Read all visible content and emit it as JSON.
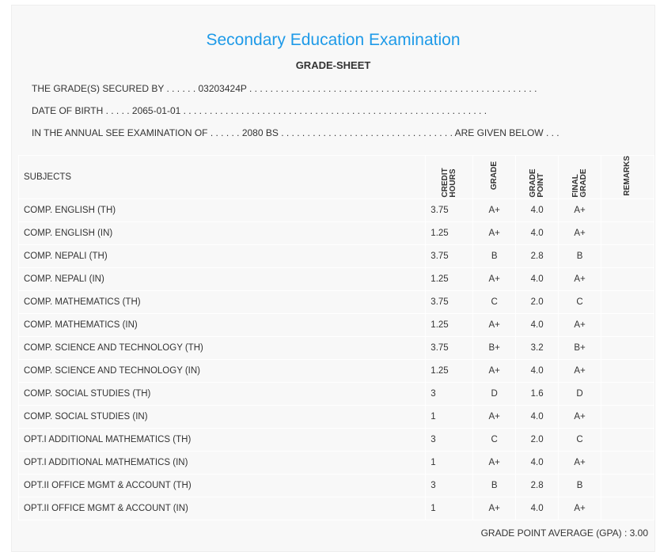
{
  "title": "Secondary Education Examination",
  "subtitle": "GRADE-SHEET",
  "lines": {
    "secured": "THE GRADE(S) SECURED BY . . . . . . 03203424P . . . . . . . . . . . . . . . . . . . . . . . . . . . . . . . . . . . . . . . . . . . . . . . . . . . . . . .",
    "dob": "DATE OF BIRTH . . . . . 2065-01-01 . . . . . . . . . . . . . . . . . . . . . . . . . . . . . . . . . . . . . . . . . . . . . . . . . . . . . . . . . .",
    "exam": "IN THE ANNUAL SEE EXAMINATION OF . . . . . . 2080 BS . . . . . . . . . . . . . . . . . . . . . . . . . . . . . . . . . ARE GIVEN BELOW . . ."
  },
  "headers": {
    "subjects": "SUBJECTS",
    "credit": "CREDIT HOURS",
    "grade": "GRADE",
    "point": "GRADE POINT",
    "final": "FINAL GRADE",
    "remarks": "REMARKS"
  },
  "rows": [
    [
      "COMP. ENGLISH (TH)",
      "3.75",
      "A+",
      "4.0",
      "A+"
    ],
    [
      "COMP. ENGLISH (IN)",
      "1.25",
      "A+",
      "4.0",
      "A+"
    ],
    [
      "COMP. NEPALI (TH)",
      "3.75",
      "B",
      "2.8",
      "B"
    ],
    [
      "COMP. NEPALI (IN)",
      "1.25",
      "A+",
      "4.0",
      "A+"
    ],
    [
      "COMP. MATHEMATICS (TH)",
      "3.75",
      "C",
      "2.0",
      "C"
    ],
    [
      "COMP. MATHEMATICS (IN)",
      "1.25",
      "A+",
      "4.0",
      "A+"
    ],
    [
      "COMP. SCIENCE AND TECHNOLOGY (TH)",
      "3.75",
      "B+",
      "3.2",
      "B+"
    ],
    [
      "COMP. SCIENCE AND TECHNOLOGY (IN)",
      "1.25",
      "A+",
      "4.0",
      "A+"
    ],
    [
      "COMP. SOCIAL STUDIES (TH)",
      "3",
      "D",
      "1.6",
      "D"
    ],
    [
      "COMP. SOCIAL STUDIES (IN)",
      "1",
      "A+",
      "4.0",
      "A+"
    ],
    [
      "OPT.I ADDITIONAL MATHEMATICS (TH)",
      "3",
      "C",
      "2.0",
      "C"
    ],
    [
      "OPT.I ADDITIONAL MATHEMATICS (IN)",
      "1",
      "A+",
      "4.0",
      "A+"
    ],
    [
      "OPT.II OFFICE MGMT & ACCOUNT (TH)",
      "3",
      "B",
      "2.8",
      "B"
    ],
    [
      "OPT.II OFFICE MGMT & ACCOUNT (IN)",
      "1",
      "A+",
      "4.0",
      "A+"
    ]
  ],
  "gpa": "GRADE POINT AVERAGE (GPA) : 3.00"
}
